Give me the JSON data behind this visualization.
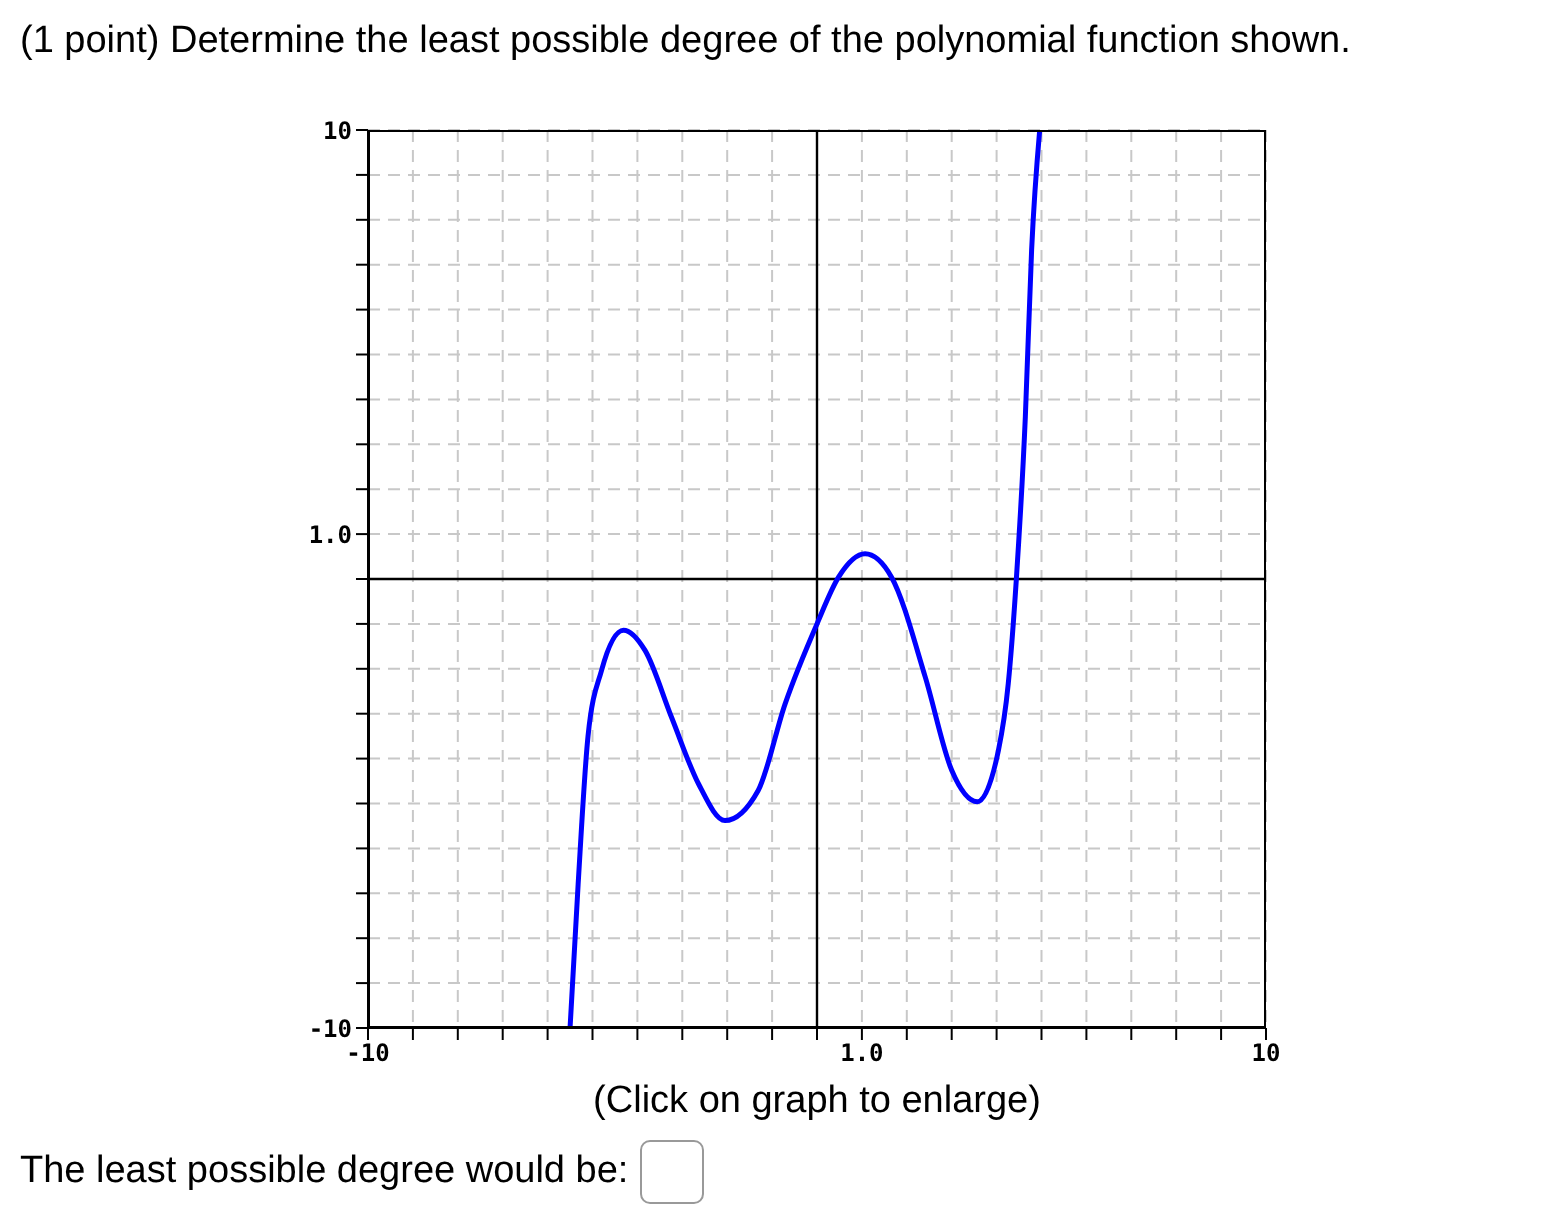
{
  "chart_data": {
    "type": "line",
    "title": "(1 point) Determine the least possible degree of the polynomial function shown.",
    "annotations": [
      "(Click on graph to enlarge)",
      "The least possible degree would be:"
    ],
    "x": [
      -5.5,
      -5.32,
      -5.1,
      -4.8,
      -4.31,
      -3.83,
      -3.24,
      -2.64,
      -2.05,
      -1.31,
      -0.71,
      0,
      0.48,
      1.07,
      1.66,
      2.41,
      3.0,
      3.57,
      4.04,
      4.26,
      4.44,
      4.64,
      4.78,
      4.96
    ],
    "series": [
      {
        "color": "#0000ff",
        "values": [
          -10,
          -6.8,
          -3.5,
          -2.04,
          -1.14,
          -1.59,
          -3.08,
          -4.56,
          -5.38,
          -4.71,
          -2.78,
          -1.0,
          0.04,
          0.56,
          0.04,
          -2.18,
          -4.26,
          -4.96,
          -3.82,
          -2.33,
          0,
          3.61,
          7.33,
          10
        ]
      }
    ],
    "xlim": [
      -10,
      10
    ],
    "ylim": [
      -10,
      10
    ],
    "xticks": [
      -10,
      {
        "value": -9,
        "label": null
      },
      {
        "value": -8,
        "label": null
      },
      {
        "value": -7,
        "label": null
      },
      {
        "value": -6,
        "label": null
      },
      {
        "value": -5,
        "label": null
      },
      {
        "value": -4,
        "label": null
      },
      {
        "value": -3,
        "label": null
      },
      {
        "value": -2,
        "label": null
      },
      {
        "value": -1,
        "label": null
      },
      {
        "value": 0,
        "label": null
      },
      {
        "value": 1,
        "label": "1.0"
      },
      {
        "value": 2,
        "label": null
      },
      {
        "value": 3,
        "label": null
      },
      {
        "value": 4,
        "label": null
      },
      {
        "value": 5,
        "label": null
      },
      {
        "value": 6,
        "label": null
      },
      {
        "value": 7,
        "label": null
      },
      {
        "value": 8,
        "label": null
      },
      {
        "value": 9,
        "label": null
      },
      10
    ],
    "yticks": [
      -10,
      {
        "value": -9,
        "label": null
      },
      {
        "value": -8,
        "label": null
      },
      {
        "value": -7,
        "label": null
      },
      {
        "value": -6,
        "label": null
      },
      {
        "value": -5,
        "label": null
      },
      {
        "value": -4,
        "label": null
      },
      {
        "value": -3,
        "label": null
      },
      {
        "value": -2,
        "label": null
      },
      {
        "value": -1,
        "label": null
      },
      {
        "value": 0,
        "label": null
      },
      {
        "value": 1,
        "label": "1.0"
      },
      {
        "value": 2,
        "label": null
      },
      {
        "value": 3,
        "label": null
      },
      {
        "value": 4,
        "label": null
      },
      {
        "value": 5,
        "label": null
      },
      {
        "value": 6,
        "label": null
      },
      {
        "value": 7,
        "label": null
      },
      {
        "value": 8,
        "label": null
      },
      {
        "value": 9,
        "label": null
      },
      10
    ],
    "grid": true,
    "marker": "none",
    "line_style": "solid"
  }
}
